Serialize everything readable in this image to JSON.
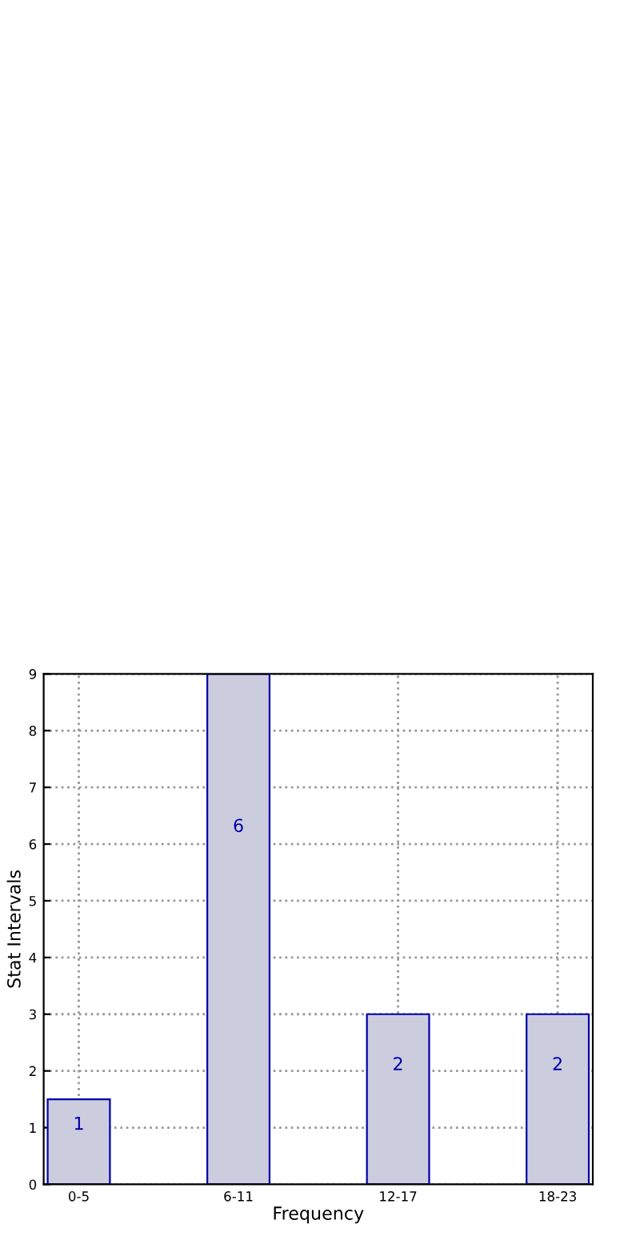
{
  "chart_data": {
    "type": "bar",
    "xlabel": "Frequency",
    "ylabel": "Stat Intervals",
    "categories": [
      "0-5",
      "6-11",
      "12-17",
      "18-23"
    ],
    "values": [
      1.5,
      9,
      3,
      3
    ],
    "color": "#ccccdf",
    "annotations": [
      "1",
      "6",
      "2",
      "2"
    ],
    "ylim": [
      0,
      9
    ],
    "yticks": [
      0,
      1,
      2,
      3,
      4,
      5,
      6,
      7,
      8,
      9
    ],
    "grid": true
  }
}
